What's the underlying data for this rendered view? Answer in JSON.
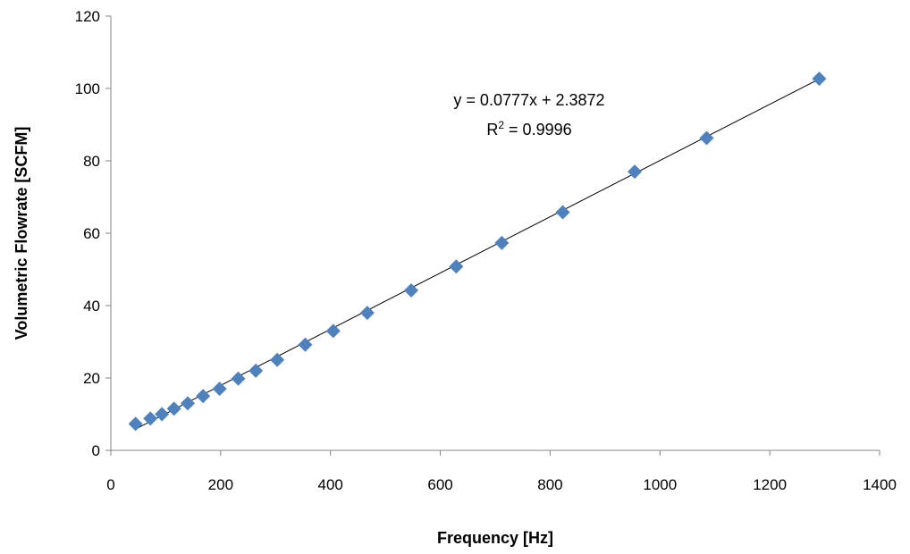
{
  "chart_data": {
    "type": "scatter",
    "xlabel": "Frequency [Hz]",
    "ylabel": "Volumetric Flowrate [SCFM]",
    "xlim": [
      0,
      1400
    ],
    "ylim": [
      0,
      120
    ],
    "xticks": [
      0,
      200,
      400,
      600,
      800,
      1000,
      1200,
      1400
    ],
    "yticks": [
      0,
      20,
      40,
      60,
      80,
      100,
      120
    ],
    "grid": false,
    "legend": "none",
    "series": [
      {
        "color": "#4F81BD",
        "marker": "diamond",
        "points": [
          {
            "x": 45,
            "y": 7.3
          },
          {
            "x": 72,
            "y": 8.8
          },
          {
            "x": 93,
            "y": 10.0
          },
          {
            "x": 115,
            "y": 11.5
          },
          {
            "x": 140,
            "y": 13.0
          },
          {
            "x": 168,
            "y": 15.0
          },
          {
            "x": 198,
            "y": 17.0
          },
          {
            "x": 232,
            "y": 19.8
          },
          {
            "x": 264,
            "y": 22.0
          },
          {
            "x": 303,
            "y": 25.0
          },
          {
            "x": 354,
            "y": 29.2
          },
          {
            "x": 405,
            "y": 33.0
          },
          {
            "x": 467,
            "y": 38.0
          },
          {
            "x": 547,
            "y": 44.2
          },
          {
            "x": 629,
            "y": 50.8
          },
          {
            "x": 712,
            "y": 57.3
          },
          {
            "x": 823,
            "y": 65.8
          },
          {
            "x": 954,
            "y": 77.0
          },
          {
            "x": 1085,
            "y": 86.3
          },
          {
            "x": 1290,
            "y": 102.7
          }
        ]
      }
    ],
    "trendline": {
      "slope": 0.0777,
      "intercept": 2.3872,
      "x_start": 45,
      "x_end": 1290,
      "color": "#000000"
    },
    "annotation": {
      "equation": "y = 0.0777x + 2.3872",
      "r2_prefix": "R",
      "r2_sup": "2",
      "r2_suffix": " = 0.9996"
    }
  }
}
